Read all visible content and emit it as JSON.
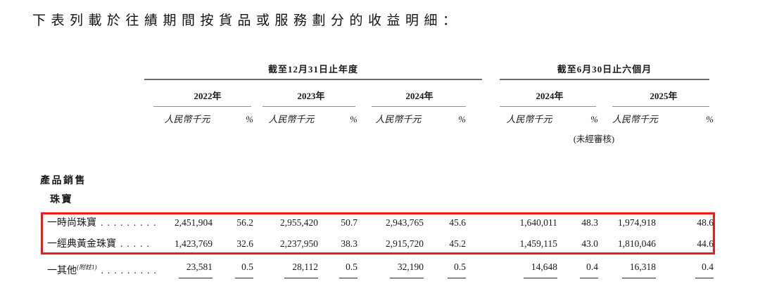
{
  "page": {
    "title": "下表列載於往績期間按貨品或服務劃分的收益明細："
  },
  "table": {
    "highlight_color": "#ec1c1c",
    "groups": [
      {
        "label": "截至12月31日止年度"
      },
      {
        "label": "截至6月30日止六個月"
      }
    ],
    "years": [
      "2022年",
      "2023年",
      "2024年",
      "2024年",
      "2025年"
    ],
    "unit_label": "人民幣千元",
    "pct_label": "%",
    "unaudited_note": "(未經審核)",
    "section": "產品銷售",
    "subsection": "珠寶",
    "rows": [
      {
        "label": "一時尚珠寶",
        "leader": ".........",
        "highlighted": true,
        "values": [
          "2,451,904",
          "56.2",
          "2,955,420",
          "50.7",
          "2,943,765",
          "45.6",
          "1,640,011",
          "48.3",
          "1,974,918",
          "48.6"
        ]
      },
      {
        "label": "一經典黃金珠寶",
        "leader": ".....",
        "highlighted": true,
        "values": [
          "1,423,769",
          "32.6",
          "2,237,950",
          "38.3",
          "2,915,720",
          "45.2",
          "1,459,115",
          "43.0",
          "1,810,046",
          "44.6"
        ]
      },
      {
        "label": "一其他",
        "note_ref": "(附註1)",
        "leader": ".........",
        "highlighted": false,
        "values": [
          "23,581",
          "0.5",
          "28,112",
          "0.5",
          "32,190",
          "0.5",
          "14,648",
          "0.4",
          "16,318",
          "0.4"
        ]
      }
    ]
  }
}
